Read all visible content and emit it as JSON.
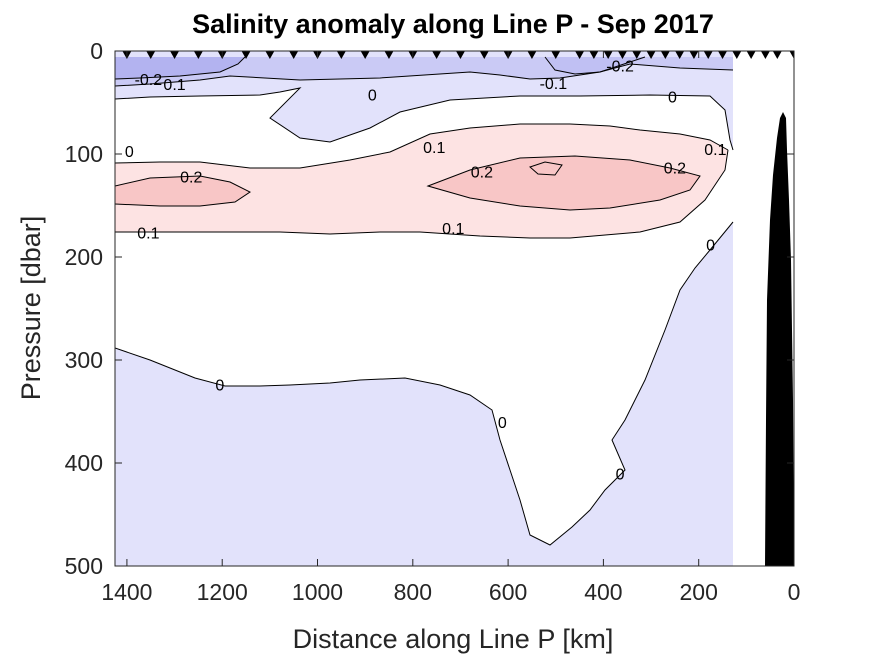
{
  "chart_data": {
    "type": "contour",
    "title": "Salinity anomaly along Line P - Sep 2017",
    "xlabel": "Distance along Line P [km]",
    "ylabel": "Pressure [dbar]",
    "xlim": [
      1425,
      0
    ],
    "x_reversed": true,
    "ylim": [
      0,
      500
    ],
    "y_reversed": true,
    "xticks": [
      1400,
      1200,
      1000,
      800,
      600,
      400,
      200,
      0
    ],
    "yticks": [
      0,
      100,
      200,
      300,
      400,
      500
    ],
    "data_right_limit_km": 125,
    "contour_levels": [
      -0.2,
      -0.1,
      0,
      0.1,
      0.2
    ],
    "colors": {
      "neg_strong": "#b3b3f0",
      "neg_mid": "#cacaf5",
      "neg_weak": "#e2e2fb",
      "zero": "#ffffff",
      "pos_weak": "#fde3e3",
      "pos_strong": "#f8c6c6",
      "bathymetry": "#000000",
      "contour_line": "#000000"
    },
    "station_markers_km": [
      1400,
      1350,
      1300,
      1250,
      1200,
      1150,
      1100,
      1050,
      1000,
      950,
      900,
      850,
      800,
      750,
      700,
      650,
      600,
      550,
      500,
      450,
      420,
      390,
      360,
      330,
      300,
      270,
      240,
      210,
      180,
      150,
      120,
      90,
      60,
      35,
      0
    ],
    "contour_labels": [
      {
        "text": "-0.2",
        "x_km": 1355,
        "p": 27
      },
      {
        "text": "0.1",
        "x_km": 1300,
        "p": 32
      },
      {
        "text": "-0.2",
        "x_km": 365,
        "p": 14
      },
      {
        "text": "-0.1",
        "x_km": 505,
        "p": 31
      },
      {
        "text": "0",
        "x_km": 885,
        "p": 42
      },
      {
        "text": "0",
        "x_km": 255,
        "p": 44
      },
      {
        "text": "0",
        "x_km": 1395,
        "p": 97
      },
      {
        "text": "0.1",
        "x_km": 755,
        "p": 93
      },
      {
        "text": "0.1",
        "x_km": 165,
        "p": 95
      },
      {
        "text": "0.2",
        "x_km": 1265,
        "p": 122
      },
      {
        "text": "0.2",
        "x_km": 655,
        "p": 117
      },
      {
        "text": "0.2",
        "x_km": 250,
        "p": 113
      },
      {
        "text": "0.1",
        "x_km": 1355,
        "p": 176
      },
      {
        "text": "0.1",
        "x_km": 715,
        "p": 172
      },
      {
        "text": "0",
        "x_km": 175,
        "p": 188
      },
      {
        "text": "0",
        "x_km": 1205,
        "p": 324
      },
      {
        "text": "0",
        "x_km": 612,
        "p": 360
      },
      {
        "text": "0",
        "x_km": 365,
        "p": 410
      }
    ]
  }
}
